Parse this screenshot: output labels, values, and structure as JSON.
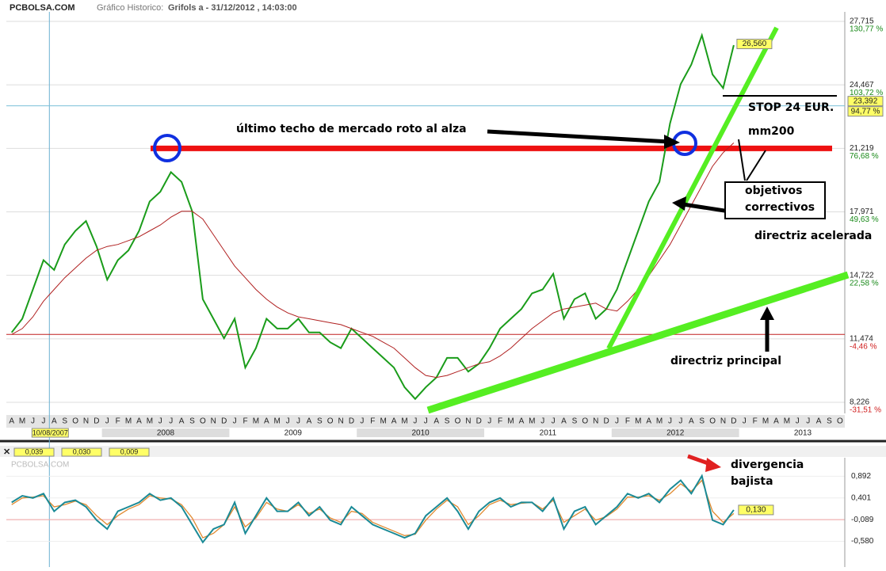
{
  "header": {
    "site": "PCBOLSA.COM",
    "label": "Gráfico Historico:",
    "subject": "Grifols a - 31/12/2012 , 14:03:00"
  },
  "chart_data": {
    "type": "line",
    "categories": [
      "A",
      "M",
      "J",
      "J",
      "A",
      "S",
      "O",
      "N",
      "D",
      "J",
      "F",
      "M",
      "A",
      "M",
      "J",
      "J",
      "A",
      "S",
      "O",
      "N",
      "D",
      "J",
      "F",
      "M",
      "A",
      "M",
      "J",
      "J",
      "A",
      "S",
      "O",
      "N",
      "D",
      "J",
      "F",
      "M",
      "A",
      "M",
      "J",
      "J",
      "A",
      "S",
      "O",
      "N",
      "D",
      "J",
      "F",
      "M",
      "A",
      "M",
      "J",
      "J",
      "A",
      "S",
      "O",
      "N",
      "D",
      "J",
      "F",
      "M",
      "A",
      "M",
      "J",
      "J",
      "A",
      "S",
      "O",
      "N",
      "D",
      "J",
      "F",
      "M",
      "A",
      "M",
      "J",
      "J",
      "A",
      "S",
      "O"
    ],
    "years": [
      "2008",
      "2009",
      "2010",
      "2011",
      "2012",
      "2013"
    ],
    "cursor_date": "10/08/2007",
    "series": [
      {
        "name": "Grifols a",
        "color": "#1a9c1a",
        "values": [
          11.8,
          12.5,
          14.0,
          15.5,
          15.0,
          16.3,
          17.0,
          17.5,
          16.2,
          14.5,
          15.5,
          16.0,
          17.0,
          18.5,
          19.0,
          20.0,
          19.5,
          18.0,
          13.5,
          12.5,
          11.5,
          12.5,
          10.0,
          11.0,
          12.5,
          12.0,
          12.0,
          12.5,
          11.8,
          11.8,
          11.3,
          11.0,
          12.0,
          11.5,
          11.0,
          10.5,
          10.0,
          9.0,
          8.4,
          9.0,
          9.5,
          10.5,
          10.5,
          9.8,
          10.2,
          11.0,
          12.0,
          12.5,
          13.0,
          13.8,
          14.0,
          14.8,
          12.5,
          13.5,
          13.8,
          12.5,
          13.0,
          14.0,
          15.5,
          17.0,
          18.5,
          19.5,
          22.5,
          24.5,
          25.5,
          27.0,
          25.0,
          24.3,
          26.5,
          null,
          null,
          null,
          null,
          null,
          null,
          null,
          null,
          null,
          null
        ]
      },
      {
        "name": "mm200",
        "color": "#b02020",
        "values": [
          11.7,
          12.0,
          12.6,
          13.4,
          14.0,
          14.6,
          15.1,
          15.6,
          16.0,
          16.2,
          16.3,
          16.5,
          16.7,
          17.0,
          17.3,
          17.7,
          18.0,
          18.0,
          17.6,
          16.8,
          16.0,
          15.2,
          14.6,
          14.0,
          13.5,
          13.1,
          12.8,
          12.6,
          12.5,
          12.4,
          12.3,
          12.2,
          12.0,
          11.8,
          11.6,
          11.3,
          11.0,
          10.5,
          10.0,
          9.6,
          9.5,
          9.6,
          9.8,
          10.0,
          10.2,
          10.3,
          10.6,
          11.0,
          11.5,
          12.0,
          12.4,
          12.8,
          13.0,
          13.1,
          13.2,
          13.3,
          13.0,
          12.9,
          13.4,
          14.0,
          14.7,
          15.5,
          16.3,
          17.3,
          18.3,
          19.3,
          20.3,
          21.0,
          21.5,
          null,
          null,
          null,
          null,
          null,
          null,
          null,
          null,
          null,
          null
        ]
      }
    ],
    "ylim": [
      7.66,
      28.2
    ],
    "yticks": [
      {
        "value": 27.715,
        "label": "27,715"
      },
      {
        "value": 24.467,
        "label": "24,467"
      },
      {
        "value": 21.219,
        "label": "21,219"
      },
      {
        "value": 17.971,
        "label": "17,971"
      },
      {
        "value": 14.722,
        "label": "14,722"
      },
      {
        "value": 11.474,
        "label": "11,474"
      },
      {
        "value": 8.226,
        "label": "8,226"
      }
    ],
    "y2lim": [
      -32.86,
      138.19
    ],
    "y2ticks": [
      {
        "value": 130.77,
        "label": "130,77 %"
      },
      {
        "value": 103.72,
        "label": "103,72 %"
      },
      {
        "value": 76.68,
        "label": "76,68 %"
      },
      {
        "value": 49.63,
        "label": "49,63 %"
      },
      {
        "value": 22.58,
        "label": "22,58 %"
      },
      {
        "value": -4.46,
        "label": "-4,46 %"
      },
      {
        "value": -31.51,
        "label": "-31,51 %"
      }
    ],
    "last_price": {
      "value": 26.56,
      "label": "26,560"
    },
    "cursor_price": {
      "value": 23.392,
      "label": "23,392"
    },
    "cursor_pct": {
      "value": 94.77,
      "label": "94,77 %"
    },
    "resistance": 21.219,
    "support": 11.7,
    "annotations": {
      "techo": "último techo de mercado roto al alza",
      "stop": "STOP 24 EUR.",
      "mm200": "mm200",
      "objetivos": "objetivos",
      "correctivos": "correctivos",
      "acelerada": "directriz acelerada",
      "principal": "directriz principal"
    },
    "grid": true
  },
  "oscillator": {
    "type": "line",
    "watermark": "PCBOLSA.COM",
    "readouts": [
      {
        "value": 0.039,
        "label": "0,039"
      },
      {
        "value": 0.03,
        "label": "0,030"
      },
      {
        "value": 0.009,
        "label": "0,009"
      }
    ],
    "last": {
      "value": 0.13,
      "label": "0,130"
    },
    "ylim": [
      -1.16,
      1.31
    ],
    "yticks": [
      {
        "value": 0.892,
        "label": "0,892"
      },
      {
        "value": 0.401,
        "label": "0,401"
      },
      {
        "value": -0.089,
        "label": "-0,089"
      },
      {
        "value": -0.58,
        "label": "-0,580"
      }
    ],
    "zero": -0.089,
    "series": [
      {
        "color": "#1a8a96",
        "values": [
          0.3,
          0.45,
          0.4,
          0.5,
          0.1,
          0.3,
          0.35,
          0.2,
          -0.1,
          -0.3,
          0.1,
          0.2,
          0.3,
          0.5,
          0.35,
          0.4,
          0.2,
          -0.2,
          -0.6,
          -0.3,
          -0.2,
          0.3,
          -0.4,
          0.0,
          0.4,
          0.1,
          0.1,
          0.3,
          0.0,
          0.2,
          -0.1,
          -0.2,
          0.2,
          0.0,
          -0.2,
          -0.3,
          -0.4,
          -0.5,
          -0.4,
          0.0,
          0.2,
          0.4,
          0.1,
          -0.3,
          0.1,
          0.3,
          0.4,
          0.2,
          0.3,
          0.3,
          0.1,
          0.4,
          -0.3,
          0.1,
          0.2,
          -0.2,
          0.0,
          0.2,
          0.5,
          0.4,
          0.5,
          0.3,
          0.6,
          0.8,
          0.5,
          0.9,
          -0.1,
          -0.2,
          0.13,
          null,
          null,
          null,
          null,
          null,
          null,
          null,
          null,
          null,
          null
        ]
      },
      {
        "color": "#e08a30",
        "values": [
          0.25,
          0.4,
          0.42,
          0.45,
          0.2,
          0.25,
          0.33,
          0.25,
          0.0,
          -0.2,
          0.0,
          0.15,
          0.25,
          0.45,
          0.4,
          0.38,
          0.25,
          -0.05,
          -0.5,
          -0.4,
          -0.2,
          0.2,
          -0.25,
          -0.05,
          0.3,
          0.15,
          0.1,
          0.25,
          0.05,
          0.15,
          -0.05,
          -0.15,
          0.1,
          0.05,
          -0.15,
          -0.25,
          -0.35,
          -0.45,
          -0.42,
          -0.1,
          0.15,
          0.35,
          0.2,
          -0.2,
          0.0,
          0.25,
          0.35,
          0.25,
          0.28,
          0.3,
          0.15,
          0.35,
          -0.15,
          0.0,
          0.15,
          -0.1,
          -0.02,
          0.15,
          0.42,
          0.42,
          0.45,
          0.35,
          0.5,
          0.72,
          0.55,
          0.8,
          0.1,
          -0.15,
          0.05,
          null,
          null,
          null,
          null,
          null,
          null,
          null,
          null,
          null,
          null
        ]
      }
    ]
  },
  "divergence": [
    "divergencia",
    "bajista"
  ]
}
